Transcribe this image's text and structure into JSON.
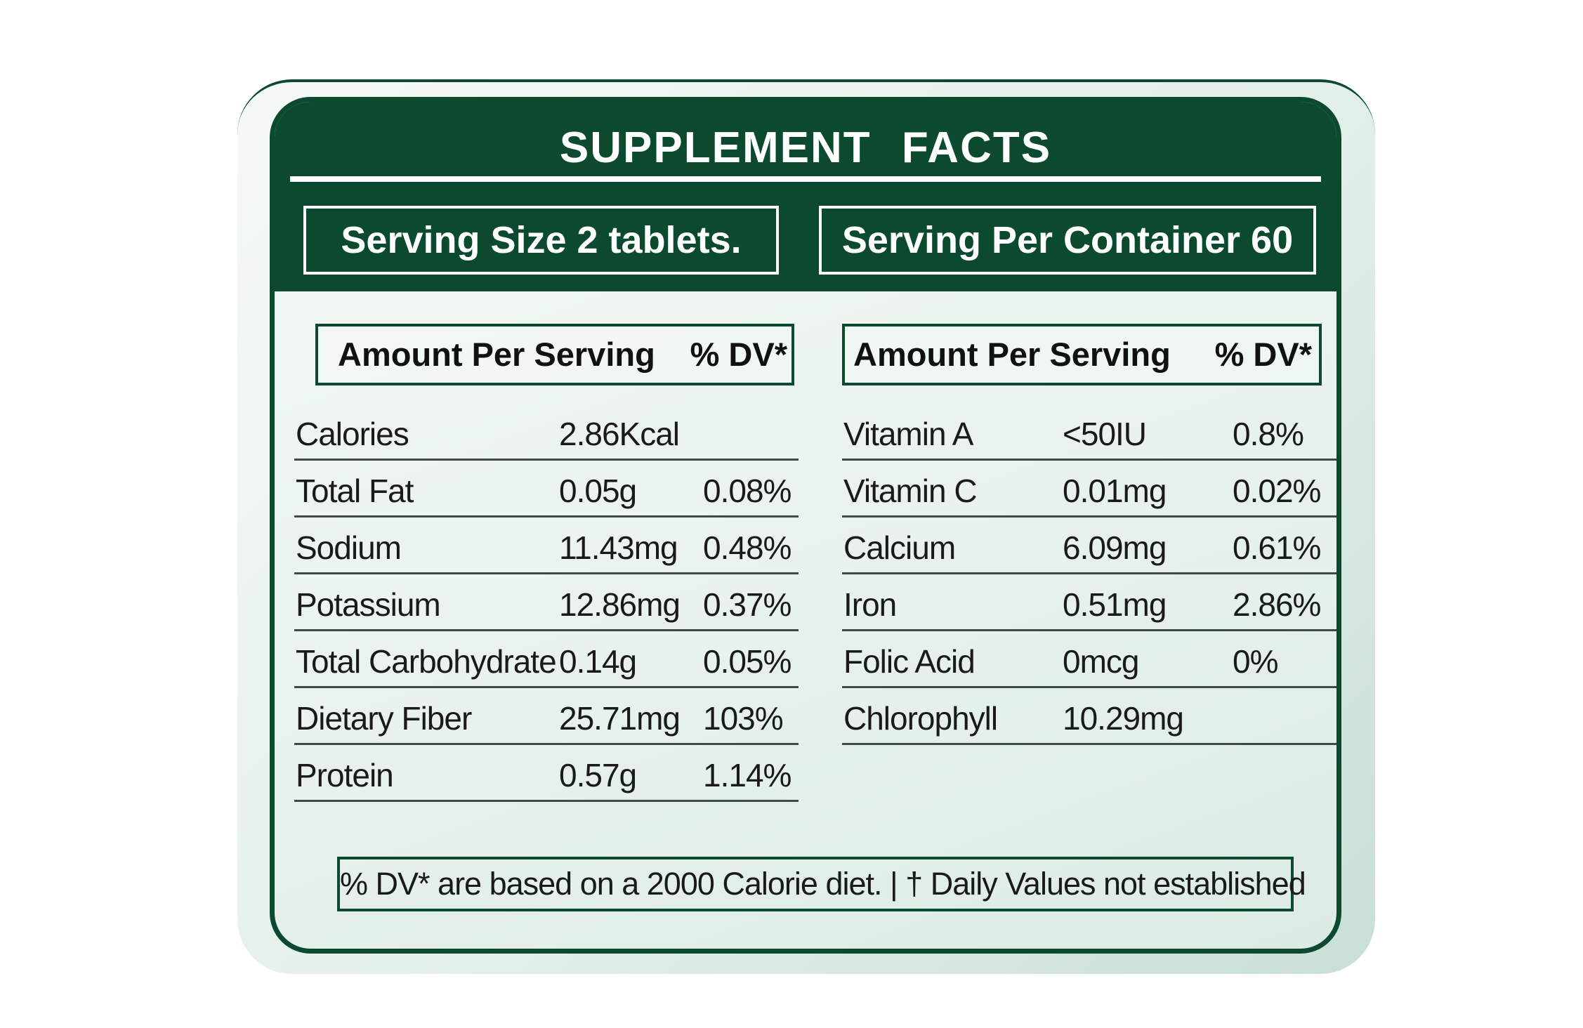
{
  "title": "SUPPLEMENT  FACTS",
  "serving": {
    "size": "Serving Size 2 tablets.",
    "per_container": "Serving Per Container 60"
  },
  "columns": {
    "left": {
      "amount_label": "Amount Per Serving",
      "dv_label": "% DV*"
    },
    "right": {
      "amount_label": "Amount Per Serving",
      "dv_label": "% DV*"
    }
  },
  "left_rows": [
    {
      "name": "Calories",
      "amount": "2.86Kcal",
      "dv": ""
    },
    {
      "name": "Total Fat",
      "amount": "0.05g",
      "dv": "0.08%"
    },
    {
      "name": "Sodium",
      "amount": "11.43mg",
      "dv": "0.48%"
    },
    {
      "name": "Potassium",
      "amount": "12.86mg",
      "dv": "0.37%"
    },
    {
      "name": "Total Carbohydrate",
      "amount": "0.14g",
      "dv": "0.05%"
    },
    {
      "name": "Dietary Fiber",
      "amount": "25.71mg",
      "dv": "103%"
    },
    {
      "name": "Protein",
      "amount": "0.57g",
      "dv": "1.14%"
    }
  ],
  "right_rows": [
    {
      "name": "Vitamin A",
      "amount": "<50IU",
      "dv": "0.8%"
    },
    {
      "name": "Vitamin C",
      "amount": "0.01mg",
      "dv": "0.02%"
    },
    {
      "name": "Calcium",
      "amount": "6.09mg",
      "dv": "0.61%"
    },
    {
      "name": "Iron",
      "amount": "0.51mg",
      "dv": "2.86%"
    },
    {
      "name": "Folic Acid",
      "amount": "0mcg",
      "dv": "0%"
    },
    {
      "name": "Chlorophyll",
      "amount": "10.29mg",
      "dv": ""
    }
  ],
  "footnote": "% DV* are based on a 2000 Calorie diet. | † Daily Values not established",
  "colors": {
    "primary_green": "#0b4a2e",
    "background_tint": "#e3efe9"
  }
}
